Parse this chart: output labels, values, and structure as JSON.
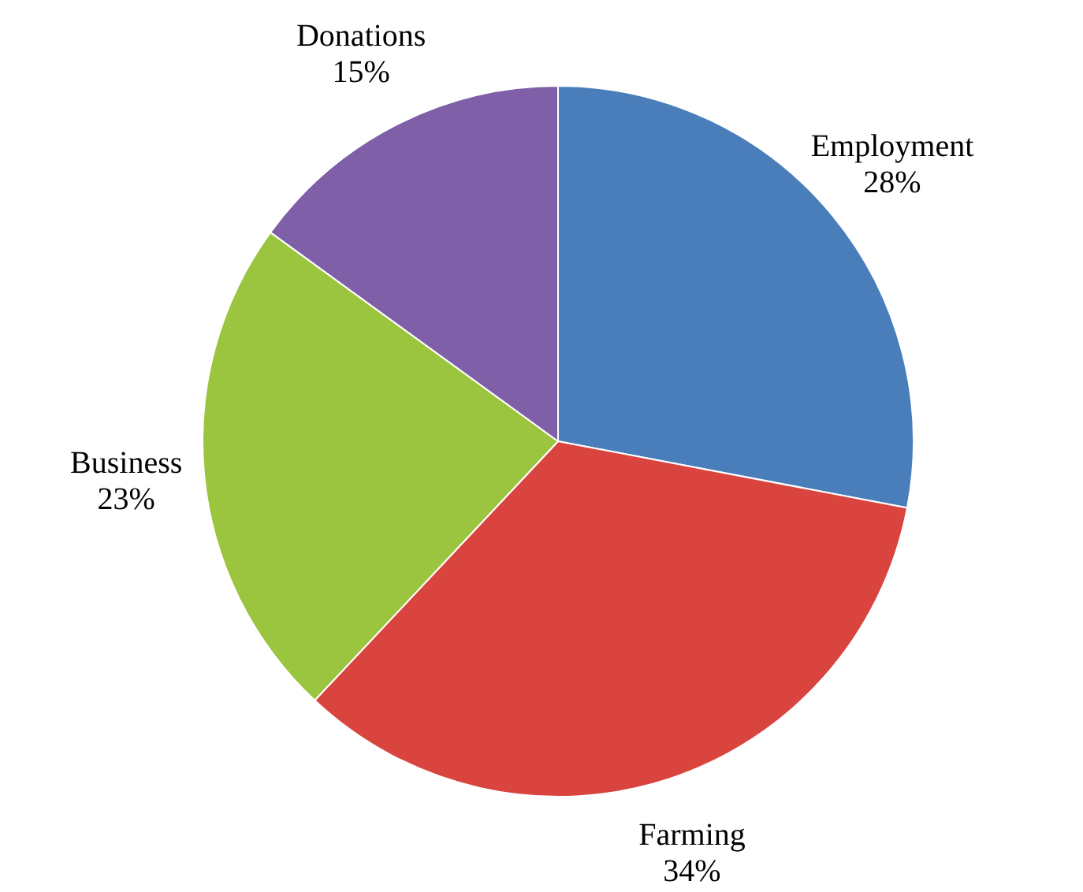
{
  "chart_data": {
    "type": "pie",
    "categories": [
      "Employment",
      "Farming",
      "Business",
      "Donations"
    ],
    "values": [
      28,
      34,
      23,
      15
    ],
    "colors": [
      "#4a7ebb",
      "#d9443f",
      "#9bc43f",
      "#7f5fa8"
    ],
    "value_labels": [
      "28%",
      "34%",
      "23%",
      "15%"
    ],
    "legend": false
  }
}
